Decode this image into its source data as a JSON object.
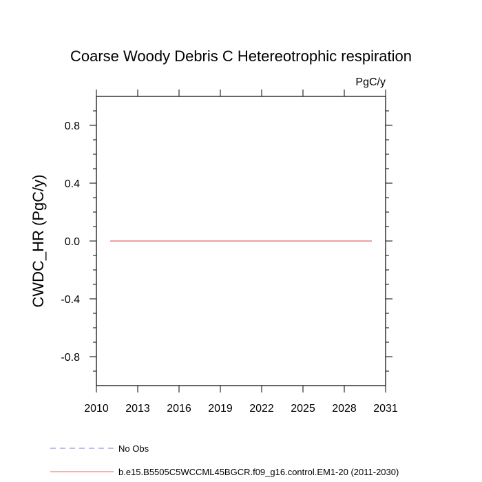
{
  "chart_data": {
    "type": "line",
    "title": "Coarse Woody Debris C Hetereotrophic respiration",
    "units_label": "PgC/y",
    "ylabel": "CWDC_HR  (PgC/y)",
    "xlabel": "",
    "xlim": [
      2010,
      2031
    ],
    "ylim": [
      -1.0,
      1.0
    ],
    "x_ticks": [
      2010,
      2013,
      2016,
      2019,
      2022,
      2025,
      2028,
      2031
    ],
    "y_ticks": [
      -0.8,
      -0.4,
      0.0,
      0.4,
      0.8
    ],
    "y_tick_labels": [
      "-0.8",
      "-0.4",
      "0.0",
      "0.4",
      "0.8"
    ],
    "grid": false,
    "legend_position": "bottom",
    "series": [
      {
        "name": "No Obs",
        "color": "#7777ee",
        "style": "dashed",
        "x": [],
        "y": []
      },
      {
        "name": "b.e15.B5505C5WCCML45BGCR.f09_g16.control.EM1-20 (2011-2030)",
        "color": "#e06666",
        "style": "solid",
        "x": [
          2011,
          2012,
          2013,
          2014,
          2015,
          2016,
          2017,
          2018,
          2019,
          2020,
          2021,
          2022,
          2023,
          2024,
          2025,
          2026,
          2027,
          2028,
          2029,
          2030
        ],
        "y": [
          0,
          0,
          0,
          0,
          0,
          0,
          0,
          0,
          0,
          0,
          0,
          0,
          0,
          0,
          0,
          0,
          0,
          0,
          0,
          0
        ]
      }
    ]
  }
}
